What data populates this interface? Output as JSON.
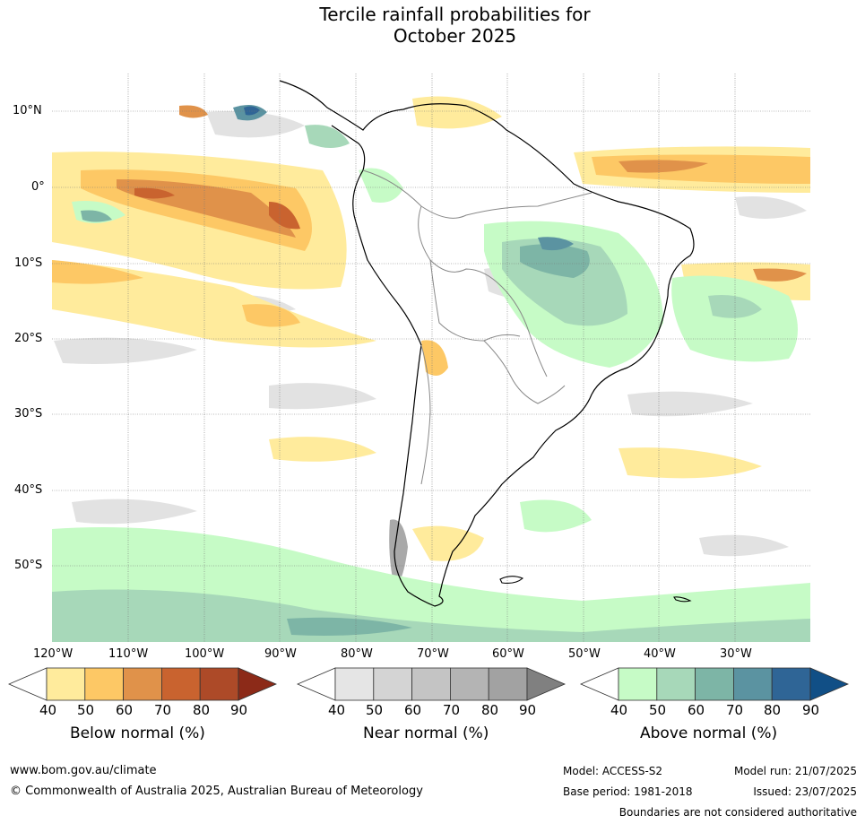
{
  "title_line1": "Tercile rainfall probabilities for",
  "title_line2": "October 2025",
  "map": {
    "lat_labels": [
      "10°N",
      "0°",
      "10°S",
      "20°S",
      "30°S",
      "40°S",
      "50°S"
    ],
    "lon_labels": [
      "120°W",
      "110°W",
      "100°W",
      "90°W",
      "80°W",
      "70°W",
      "60°W",
      "50°W",
      "40°W",
      "30°W"
    ]
  },
  "legends": [
    {
      "title": "Below normal (%)",
      "ticks": [
        "40",
        "50",
        "60",
        "70",
        "80",
        "90"
      ],
      "colors": [
        "#ffffff",
        "#ffeb9c",
        "#fdc865",
        "#e0924a",
        "#c9632f",
        "#ad4a28",
        "#8c2a18"
      ]
    },
    {
      "title": "Near normal (%)",
      "ticks": [
        "40",
        "50",
        "60",
        "70",
        "80",
        "90"
      ],
      "colors": [
        "#ffffff",
        "#e5e5e5",
        "#d4d4d4",
        "#c4c4c4",
        "#b4b4b4",
        "#a2a2a2",
        "#808080"
      ]
    },
    {
      "title": "Above normal (%)",
      "ticks": [
        "40",
        "50",
        "60",
        "70",
        "80",
        "90"
      ],
      "colors": [
        "#ffffff",
        "#c6fbc6",
        "#a7d8b9",
        "#7db5a6",
        "#5b93a1",
        "#2f6596",
        "#114f86"
      ]
    }
  ],
  "footer": {
    "url": "www.bom.gov.au/climate",
    "copyright": "© Commonwealth of Australia 2025, Australian Bureau of Meteorology",
    "model": "Model: ACCESS-S2",
    "base_period": "Base period: 1981-2018",
    "model_run": "Model run: 21/07/2025",
    "issued": "Issued: 23/07/2025",
    "disclaimer": "Boundaries are not considered authoritative"
  }
}
